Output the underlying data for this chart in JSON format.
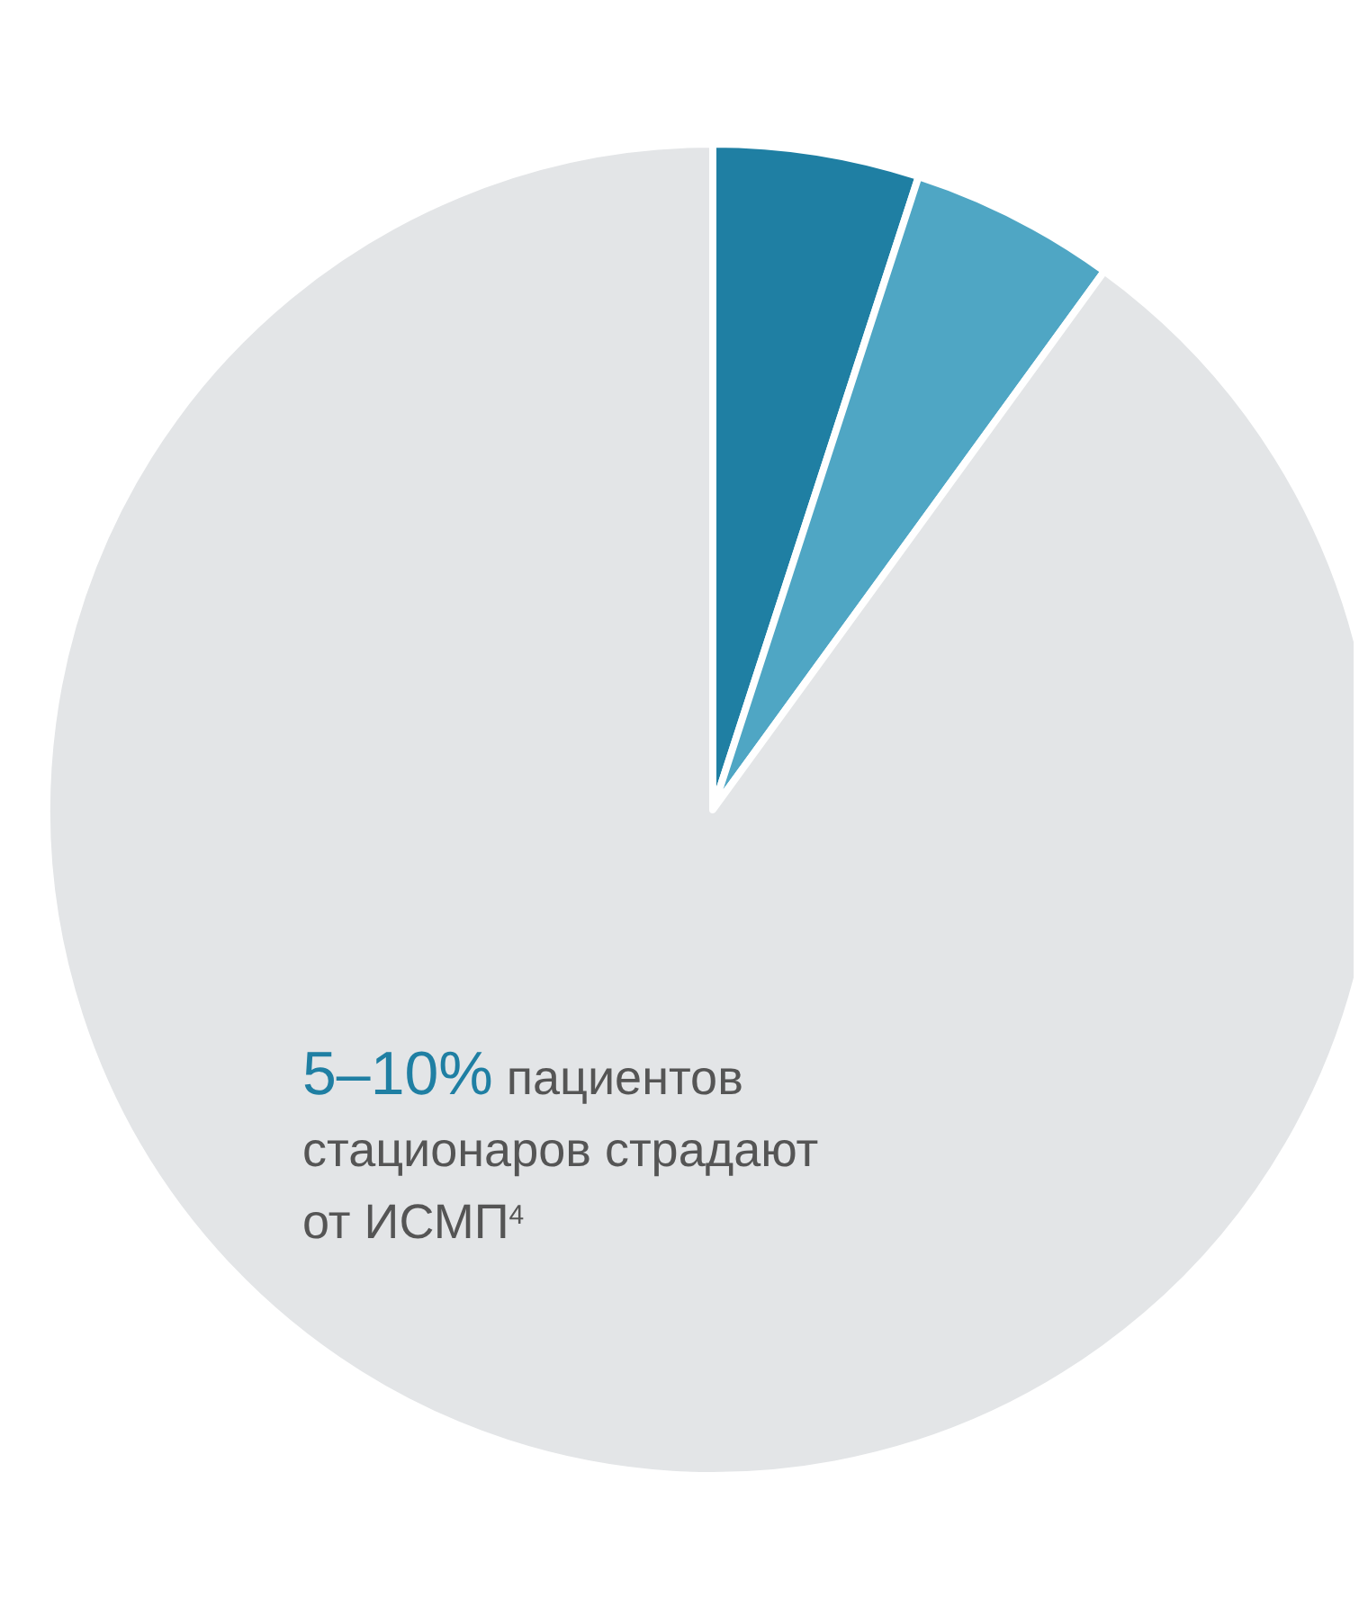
{
  "chart_data": {
    "type": "pie",
    "categories": [
      null,
      null,
      null
    ],
    "values": [
      5,
      5,
      90
    ],
    "colors": [
      "#1f7fa3",
      "#4fa6c4",
      "#e3e5e7"
    ],
    "annotations": [
      "5–10% пациентов стационаров страдают от ИСМП$^{4}$"
    ]
  }
}
